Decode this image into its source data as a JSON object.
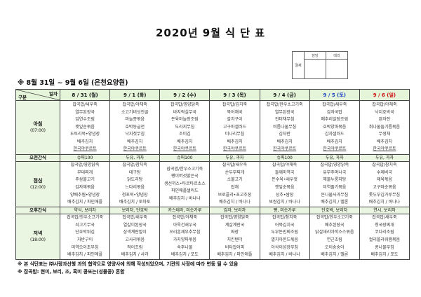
{
  "title": "2020년 9월 식 단 표",
  "approval": {
    "label": "결재",
    "col1": "담당",
    "col2": "대리"
  },
  "subtitle": "※ 8월 31일 ~ 9월 6일 (은천요양원)",
  "header": {
    "corner_top": "일자",
    "corner_bottom": "구분",
    "days": [
      "8 / 31 (월)",
      "9 / 1 (화)",
      "9 / 2 (수)",
      "9 / 3 (목)",
      "9 / 4 (금)",
      "9 / 5 (토)",
      "9 / 6 (일)"
    ]
  },
  "colors": {
    "header_bg": "#e4f5da",
    "saturday": "#1a3fc0",
    "sunday": "#d01010"
  },
  "rows": {
    "breakfast": {
      "label": "아침",
      "time": "(07:00)",
      "days": [
        [
          "잡곡밥/새우죽",
          "열무된장국",
          "임연수조림",
          "깻잎순볶음",
          "도토리묵•양념장",
          "배추김치",
          "한국야쿠르트"
        ],
        [
          "잡곡밥/야채죽",
          "소고기버섯전골",
          "마늘쫑볶음",
          "호박동글전",
          "낙지젓무침",
          "배추김치",
          "한국야쿠르트"
        ],
        [
          "잡곡밥/영양닭죽",
          "바지락실무국",
          "돈육마늘장조림",
          "도라지무침",
          "조미김",
          "배추김치",
          "한국야쿠르트"
        ],
        [
          "잡곡밥/김치죽",
          "북어채국",
          "갈치구이",
          "고구마샐러드",
          "미나리무침",
          "배추김치",
          "한국야쿠르트"
        ],
        [
          "잡곡밥/한우소고기죽",
          "열무된장국",
          "진미채무침",
          "비름나물무침",
          "김자반",
          "배추김치",
          "한국야쿠르트"
        ],
        [
          "잡곡밥/새우죽",
          "감자국밥",
          "메추리알장조림",
          "호박양파볶음",
          "감자샐러드",
          "배추김치",
          "한국야쿠르트"
        ],
        [
          "잡곡밥/야채죽",
          "낙지호박국",
          "완자전",
          "취나물들기름볶음",
          "무생채",
          "배추김치",
          "한국야쿠르트"
        ]
      ]
    },
    "am_snack": {
      "label": "오전간식",
      "days": [
        "슈퍼100",
        "두유, 과자",
        "슈퍼100",
        "두유, 과자",
        "슈퍼100",
        "두유, 과자",
        "두유, 과자"
      ]
    },
    "lunch": {
      "label": "점심",
      "time": "(12:00)",
      "days": [
        [
          "잡곡밥/영양닭죽",
          "부대찌개",
          "주삼불고기",
          "김자채볶음",
          "양배추찜•양념장",
          "배추김치 / 파인애플"
        ],
        [
          "잡곡밥/참치죽",
          "대구탕",
          "닭도리탕",
          "느타리볶음",
          "청포묵•양념장",
          "배추김치 / 토마토"
        ],
        [
          "잡곡밥/한우소고기죽",
          "팽이버섯맑은국",
          "생선까스•타르타르소스",
          "파인애플샐러드",
          "배추김치 / 바나나"
        ],
        [
          "잡곡밥/새우죽",
          "순두부찌개",
          "소불고기",
          "잡채",
          "브로콜리•초고추장",
          "배추김치 / 바나나"
        ],
        [
          "잡곡밥/야채죽",
          "들깨미역국",
          "돈수육•새우젓",
          "깻잎순볶음",
          "상추•쌈장",
          "보쌈김치 / 바나나"
        ],
        [
          "잡곡밥/영양닭죽",
          "유부주머니국",
          "해물누룽지탕",
          "미역줄기볶음",
          "돈나물사과무침",
          "배추김치 / 멜론"
        ],
        [
          "잡곡밥/참치죽",
          "수제비국",
          "제육볶음",
          "고구마순볶음",
          "톳두부김가루무침",
          "배추김치 / 바나나"
        ]
      ]
    },
    "pm_snack": {
      "label": "오후간식",
      "days": [
        "약식, 보리차",
        "보리차, 단호박",
        "카스테라, 미숫가루",
        "감자, 보리차",
        "빵, 미숫가루",
        "단호박, 보리차",
        "연시, 보리차"
      ]
    },
    "dinner": {
      "label": "저녁",
      "time": "(18:00)",
      "days": [
        [
          "잡곡밥/한우소고기죽",
          "쇠고기무국",
          "단호박튀김",
          "자반구이",
          "미역오이초무침",
          "배추김치 / 파인애플"
        ],
        [
          "잡곡밥/새우죽",
          "열갈이된장국",
          "삼색계란말이",
          "고사리볶음",
          "적어조림",
          "배추김치 / 사과"
        ],
        [
          "잡곡밥/야채죽",
          "아욱건새우국",
          "오리훈제부추무침",
          "가지양파볶음",
          "숙주나물",
          "배추김치 / 포도"
        ],
        [
          "잡곡밥/영양닭죽",
          "계살계란국",
          "짜장",
          "치킨텐더",
          "비타잡어피",
          "배추김치 / 파인애플"
        ],
        [
          "잡곡밥/참치죽",
          "어묵김치국",
          "두부돈민찌조림",
          "멸치아몬드볶음",
          "아삭이섬장무침",
          "배추김치 / 바나나"
        ],
        [
          "잡곡밥/한우소고기죽",
          "배추된장국",
          "닭살데리야끼소스볶음",
          "연근조림",
          "오이숭숭이",
          "배추김치 / 멜론"
        ],
        [
          "잡곡밥/새우죽",
          "청국장찌개",
          "코다리조림",
          "컬리플라워햄볶음",
          "콩나물무침",
          "배추김치 / 포도"
        ]
      ]
    }
  },
  "notes": [
    "※ 본 식단표는 ㈜사랑과선행 과의 협약으로 영양사에 의해 작성되었으며, 기관의 사정에 따라 변동 될 수 있음",
    "※ 잡곡밥: 현미, 보리, 조, 흑미 콩또는(성물콩) 혼합"
  ]
}
